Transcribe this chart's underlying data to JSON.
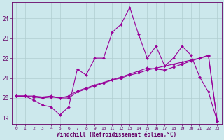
{
  "xlabel": "Windchill (Refroidissement éolien,°C)",
  "background_color": "#cce8ec",
  "line_color": "#990099",
  "xlim": [
    -0.5,
    23.5
  ],
  "ylim": [
    18.7,
    24.8
  ],
  "yticks": [
    19,
    20,
    21,
    22,
    23,
    24
  ],
  "xticks": [
    0,
    1,
    2,
    3,
    4,
    5,
    6,
    7,
    8,
    9,
    10,
    11,
    12,
    13,
    14,
    15,
    16,
    17,
    18,
    19,
    20,
    21,
    22,
    23
  ],
  "series1_x": [
    0,
    1,
    2,
    3,
    4,
    5,
    6,
    7,
    8,
    9,
    10,
    11,
    12,
    13,
    14,
    15,
    16,
    17,
    18,
    19,
    20,
    21,
    22,
    23
  ],
  "series1_y": [
    20.1,
    20.1,
    19.9,
    19.65,
    19.55,
    19.15,
    19.55,
    21.45,
    21.15,
    22.0,
    22.0,
    23.3,
    23.7,
    24.55,
    23.2,
    22.0,
    22.6,
    21.6,
    22.0,
    22.6,
    22.15,
    21.05,
    20.3,
    18.85
  ],
  "series2_x": [
    0,
    1,
    2,
    3,
    4,
    5,
    6,
    7,
    8,
    9,
    10,
    11,
    12,
    13,
    14,
    15,
    16,
    17,
    18,
    19,
    20,
    21,
    22,
    23
  ],
  "series2_y": [
    20.1,
    20.1,
    20.05,
    20.0,
    20.05,
    20.0,
    20.0,
    20.3,
    20.45,
    20.6,
    20.75,
    20.9,
    21.0,
    21.15,
    21.25,
    21.4,
    21.5,
    21.6,
    21.7,
    21.8,
    21.9,
    22.0,
    22.1,
    18.85
  ],
  "series3_x": [
    0,
    1,
    2,
    3,
    4,
    5,
    6,
    7,
    8,
    9,
    10,
    11,
    12,
    13,
    14,
    15,
    16,
    17,
    18,
    19,
    20,
    21,
    22,
    23
  ],
  "series3_y": [
    20.1,
    20.1,
    20.1,
    20.05,
    20.1,
    20.0,
    20.1,
    20.35,
    20.5,
    20.65,
    20.78,
    20.92,
    21.05,
    21.2,
    21.35,
    21.5,
    21.45,
    21.4,
    21.55,
    21.7,
    21.85,
    22.0,
    22.15,
    18.85
  ]
}
